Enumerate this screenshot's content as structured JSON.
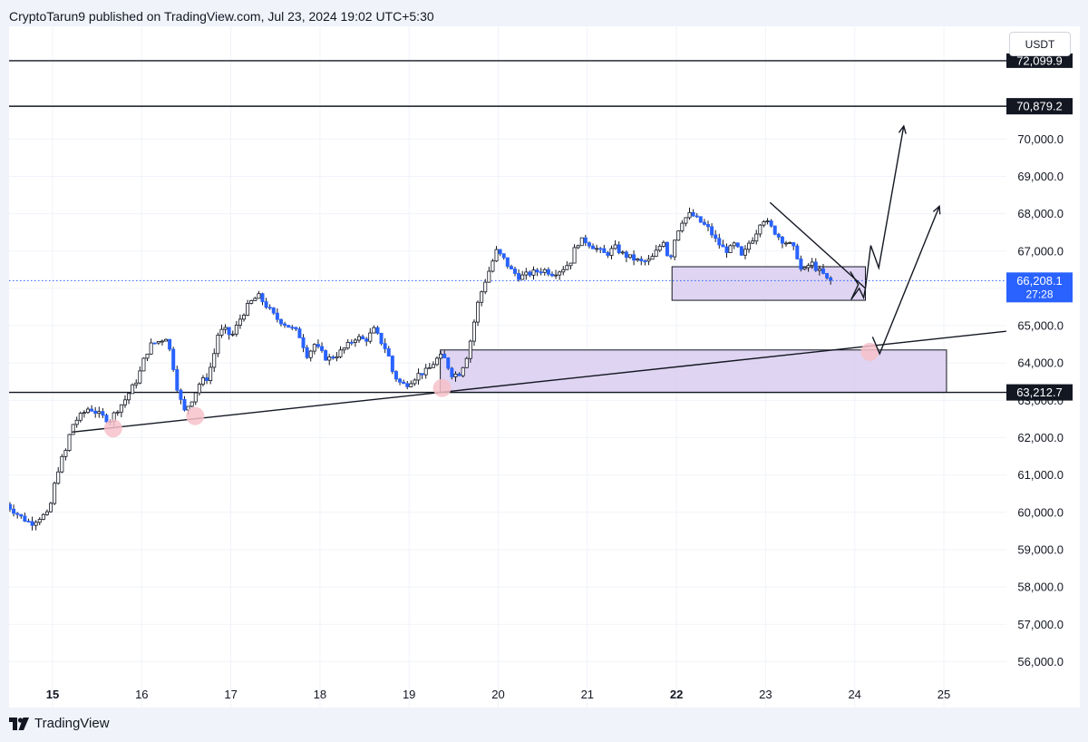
{
  "header": {
    "publisher_line": "CryptoTarun9 published on TradingView.com, Jul 23, 2024 19:02 UTC+5:30"
  },
  "footer": {
    "brand": "TradingView"
  },
  "currency": "USDT",
  "price_labels": {
    "top_cut": "72,099.9",
    "resistance": "70,879.2",
    "current": "66,208.1",
    "countdown": "27:28",
    "support": "63,212.7"
  },
  "colors": {
    "up": "#131722",
    "down": "#2962ff",
    "zone_fill": "#d9cdef",
    "marker": "#f7c1c9",
    "current_label": "#2962ff"
  },
  "chart_data": {
    "type": "candlestick",
    "symbol_quote": "USDT",
    "y_axis": {
      "ticks": [
        56000,
        57000,
        58000,
        59000,
        60000,
        61000,
        62000,
        63000,
        64000,
        65000,
        66000,
        67000,
        68000,
        69000,
        70000
      ],
      "tick_labels": [
        "56,000.0",
        "57,000.0",
        "58,000.0",
        "59,000.0",
        "60,000.0",
        "61,000.0",
        "62,000.0",
        "63,000.0",
        "64,000.0",
        "65,000.0",
        "66,000.0",
        "67,000.0",
        "68,000.0",
        "69,000.0",
        "70,000.0"
      ],
      "range": [
        55450,
        72850
      ]
    },
    "x_axis": {
      "ticks": [
        15,
        16,
        17,
        18,
        19,
        20,
        21,
        22,
        23,
        24,
        25
      ],
      "tick_labels": [
        "15",
        "16",
        "17",
        "18",
        "19",
        "20",
        "21",
        "22",
        "23",
        "24",
        "25"
      ],
      "bold_ticks": [
        "15",
        "22"
      ],
      "range": [
        14.48,
        25.7
      ]
    },
    "close_path": [
      [
        14.48,
        60300
      ],
      [
        14.6,
        60050
      ],
      [
        14.7,
        59850
      ],
      [
        14.8,
        59700
      ],
      [
        14.92,
        59900
      ],
      [
        15.0,
        59950
      ],
      [
        15.05,
        60600
      ],
      [
        15.12,
        61300
      ],
      [
        15.2,
        61700
      ],
      [
        15.25,
        62300
      ],
      [
        15.32,
        62500
      ],
      [
        15.45,
        62800
      ],
      [
        15.58,
        62600
      ],
      [
        15.68,
        62450
      ],
      [
        15.75,
        62700
      ],
      [
        15.85,
        63000
      ],
      [
        15.95,
        63400
      ],
      [
        16.0,
        63600
      ],
      [
        16.08,
        64200
      ],
      [
        16.15,
        64500
      ],
      [
        16.25,
        64600
      ],
      [
        16.32,
        64700
      ],
      [
        16.38,
        64100
      ],
      [
        16.45,
        63200
      ],
      [
        16.52,
        62700
      ],
      [
        16.6,
        63000
      ],
      [
        16.7,
        63500
      ],
      [
        16.78,
        63600
      ],
      [
        16.85,
        64200
      ],
      [
        16.9,
        64800
      ],
      [
        16.97,
        64900
      ],
      [
        17.05,
        64700
      ],
      [
        17.15,
        65200
      ],
      [
        17.25,
        65600
      ],
      [
        17.35,
        65800
      ],
      [
        17.45,
        65500
      ],
      [
        17.55,
        65200
      ],
      [
        17.68,
        65000
      ],
      [
        17.8,
        64800
      ],
      [
        17.9,
        64200
      ],
      [
        17.98,
        64500
      ],
      [
        18.05,
        64300
      ],
      [
        18.12,
        64100
      ],
      [
        18.22,
        64200
      ],
      [
        18.32,
        64400
      ],
      [
        18.45,
        64700
      ],
      [
        18.55,
        64600
      ],
      [
        18.65,
        64900
      ],
      [
        18.72,
        64600
      ],
      [
        18.8,
        64300
      ],
      [
        18.85,
        63800
      ],
      [
        18.92,
        63500
      ],
      [
        19.0,
        63400
      ],
      [
        19.1,
        63600
      ],
      [
        19.15,
        63700
      ],
      [
        19.25,
        63800
      ],
      [
        19.35,
        64100
      ],
      [
        19.42,
        64200
      ],
      [
        19.52,
        63700
      ],
      [
        19.6,
        63700
      ],
      [
        19.68,
        64100
      ],
      [
        19.75,
        64800
      ],
      [
        19.8,
        65500
      ],
      [
        19.88,
        66100
      ],
      [
        19.96,
        66600
      ],
      [
        20.02,
        67000
      ],
      [
        20.1,
        66800
      ],
      [
        20.18,
        66500
      ],
      [
        20.28,
        66300
      ],
      [
        20.4,
        66400
      ],
      [
        20.55,
        66500
      ],
      [
        20.65,
        66400
      ],
      [
        20.75,
        66500
      ],
      [
        20.85,
        66700
      ],
      [
        20.92,
        67200
      ],
      [
        21.0,
        67300
      ],
      [
        21.12,
        67100
      ],
      [
        21.25,
        66900
      ],
      [
        21.35,
        67100
      ],
      [
        21.45,
        66900
      ],
      [
        21.55,
        66800
      ],
      [
        21.65,
        66700
      ],
      [
        21.75,
        66750
      ],
      [
        21.82,
        67000
      ],
      [
        21.9,
        67300
      ],
      [
        21.96,
        66700
      ],
      [
        22.03,
        67400
      ],
      [
        22.1,
        67800
      ],
      [
        22.2,
        68000
      ],
      [
        22.3,
        67800
      ],
      [
        22.4,
        67600
      ],
      [
        22.48,
        67300
      ],
      [
        22.55,
        67100
      ],
      [
        22.62,
        67000
      ],
      [
        22.7,
        67200
      ],
      [
        22.78,
        66800
      ],
      [
        22.85,
        67200
      ],
      [
        22.92,
        67400
      ],
      [
        23.0,
        67900
      ],
      [
        23.08,
        67700
      ],
      [
        23.15,
        67500
      ],
      [
        23.22,
        67300
      ],
      [
        23.3,
        67200
      ],
      [
        23.38,
        67000
      ],
      [
        23.45,
        66400
      ],
      [
        23.55,
        66700
      ],
      [
        23.62,
        66500
      ],
      [
        23.68,
        66400
      ],
      [
        23.74,
        66208
      ]
    ],
    "levels": [
      72099.9,
      70879.2,
      63212.7
    ],
    "current_price": 66208.1,
    "zones": [
      {
        "x": [
          19.35,
          25.03
        ],
        "y": [
          63212.7,
          64350
        ]
      },
      {
        "x": [
          21.95,
          24.12
        ],
        "y": [
          65680,
          66580
        ]
      }
    ],
    "trendlines": [
      {
        "from": [
          15.22,
          62150
        ],
        "to": [
          25.7,
          64850
        ]
      },
      {
        "from": [
          23.05,
          68300
        ],
        "to": [
          24.12,
          66000
        ]
      }
    ],
    "touch_markers": [
      [
        15.68,
        62250
      ],
      [
        16.6,
        62580
      ],
      [
        19.37,
        63330
      ],
      [
        24.17,
        64300
      ]
    ],
    "projections": [
      [
        [
          23.95,
          66450
        ],
        [
          24.04,
          66100
        ],
        [
          23.96,
          65700
        ],
        [
          24.05,
          66000
        ],
        [
          24.1,
          65750
        ],
        [
          24.12,
          66000
        ],
        [
          24.18,
          67150
        ],
        [
          24.27,
          66550
        ],
        [
          24.55,
          70350
        ]
      ],
      [
        [
          24.2,
          64700
        ],
        [
          24.28,
          64250
        ],
        [
          24.95,
          68200
        ]
      ]
    ]
  }
}
